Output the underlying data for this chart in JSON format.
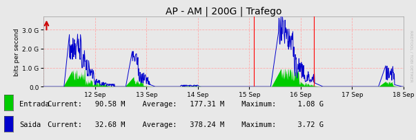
{
  "title": "AP - AM | 200G | Trafego",
  "ylabel": "bits per second",
  "background_color": "#e8e8e8",
  "plot_bg_color": "#e8e8e8",
  "grid_color": "#ffaaaa",
  "ylim_max": 3720000000.0,
  "N": 1008,
  "red_vline_positions": [
    588,
    756
  ],
  "title_fontsize": 10,
  "watermark": "RRDTOOL / TOBI OETIKER",
  "entrada_color": "#00cc00",
  "saida_color": "#0000cc",
  "arrow_color": "#cc0000",
  "legend_entrada_label": "Entrada",
  "legend_saida_label": "Saida",
  "stats_1": "Current:   90.58 M    Average:   177.31 M    Maximum:     1.08 G",
  "stats_2": "Current:   32.68 M    Average:   378.24 M    Maximum:     3.72 G"
}
